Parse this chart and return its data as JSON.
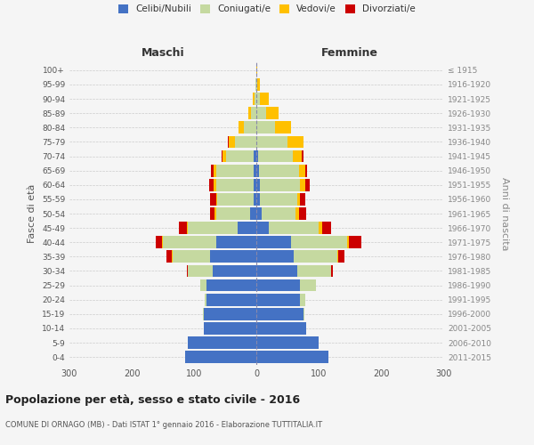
{
  "age_groups": [
    "0-4",
    "5-9",
    "10-14",
    "15-19",
    "20-24",
    "25-29",
    "30-34",
    "35-39",
    "40-44",
    "45-49",
    "50-54",
    "55-59",
    "60-64",
    "65-69",
    "70-74",
    "75-79",
    "80-84",
    "85-89",
    "90-94",
    "95-99",
    "100+"
  ],
  "birth_years": [
    "2011-2015",
    "2006-2010",
    "2001-2005",
    "1996-2000",
    "1991-1995",
    "1986-1990",
    "1981-1985",
    "1976-1980",
    "1971-1975",
    "1966-1970",
    "1961-1965",
    "1956-1960",
    "1951-1955",
    "1946-1950",
    "1941-1945",
    "1936-1940",
    "1931-1935",
    "1926-1930",
    "1921-1925",
    "1916-1920",
    "≤ 1915"
  ],
  "male_celibe": [
    115,
    110,
    85,
    85,
    80,
    80,
    70,
    75,
    65,
    30,
    10,
    5,
    5,
    4,
    4,
    0,
    0,
    0,
    0,
    0,
    0
  ],
  "male_coniugato": [
    0,
    0,
    0,
    1,
    3,
    10,
    40,
    60,
    85,
    80,
    55,
    58,
    60,
    60,
    45,
    35,
    20,
    8,
    3,
    1,
    0
  ],
  "male_vedovo": [
    0,
    0,
    0,
    0,
    0,
    0,
    0,
    1,
    2,
    2,
    2,
    2,
    3,
    4,
    5,
    10,
    8,
    5,
    3,
    1,
    0
  ],
  "male_divorziato": [
    0,
    0,
    0,
    0,
    0,
    0,
    2,
    8,
    10,
    12,
    8,
    10,
    8,
    5,
    2,
    1,
    1,
    0,
    0,
    0,
    0
  ],
  "female_celibe": [
    115,
    100,
    80,
    75,
    70,
    70,
    65,
    60,
    55,
    20,
    8,
    5,
    5,
    4,
    3,
    0,
    0,
    0,
    0,
    0,
    0
  ],
  "female_coniugato": [
    0,
    0,
    0,
    2,
    8,
    25,
    55,
    70,
    90,
    80,
    55,
    60,
    65,
    65,
    55,
    50,
    30,
    15,
    5,
    1,
    0
  ],
  "female_vedovo": [
    0,
    0,
    0,
    0,
    0,
    0,
    0,
    2,
    4,
    5,
    5,
    5,
    8,
    10,
    15,
    25,
    25,
    20,
    15,
    5,
    1
  ],
  "female_divorziato": [
    0,
    0,
    0,
    0,
    0,
    1,
    3,
    10,
    20,
    15,
    12,
    8,
    8,
    3,
    3,
    1,
    1,
    0,
    0,
    0,
    0
  ],
  "color_celibe": "#4472c4",
  "color_coniugato": "#c5d9a0",
  "color_vedovo": "#ffc000",
  "color_divorziato": "#cc0000",
  "title": "Popolazione per età, sesso e stato civile - 2016",
  "subtitle": "COMUNE DI ORNAGO (MB) - Dati ISTAT 1° gennaio 2016 - Elaborazione TUTTITALIA.IT",
  "ylabel_left": "Fasce di età",
  "ylabel_right": "Anni di nascita",
  "xlabel_left": "Maschi",
  "xlabel_right": "Femmine",
  "xlim": 300,
  "bg_color": "#f5f5f5",
  "grid_color": "#cccccc"
}
